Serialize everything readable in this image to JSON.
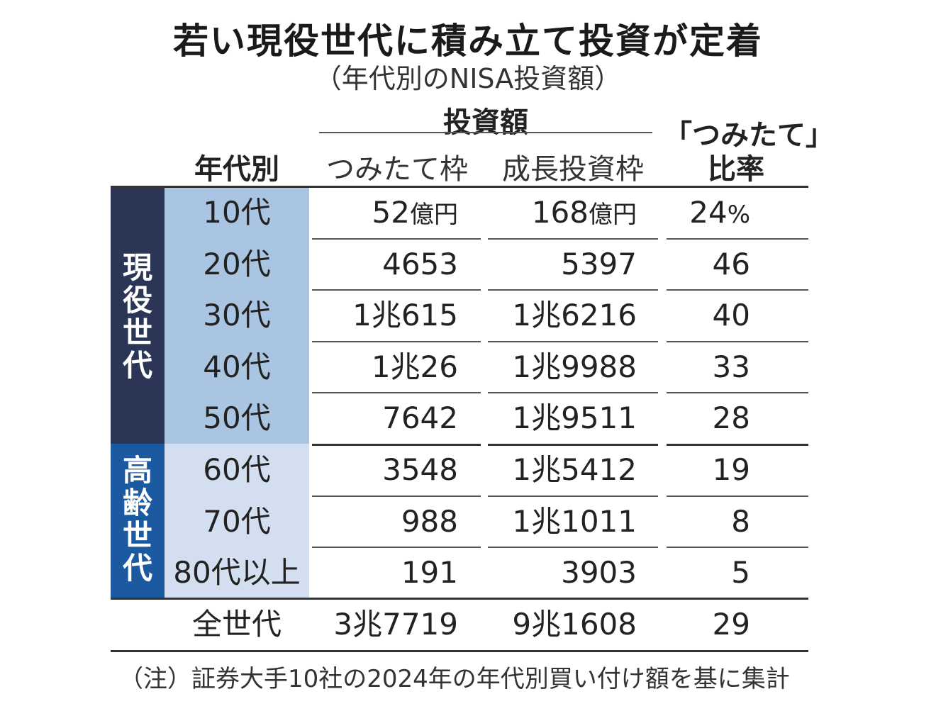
{
  "title": "若い現役世代に積み立て投資が定着",
  "subtitle": "（年代別のNISA投資額）",
  "headers": {
    "investment_group": "投資額",
    "age": "年代別",
    "tsumitate": "つみたて枠",
    "growth": "成長投資枠",
    "ratio_line1": "「つみたて」",
    "ratio_line2": "比率"
  },
  "groups": {
    "working": [
      "現",
      "役",
      "世",
      "代"
    ],
    "elderly": [
      "高",
      "齢",
      "世",
      "代"
    ]
  },
  "colors": {
    "working_band": "#2b3556",
    "working_age_bg": "#a9c5e1",
    "elderly_band": "#1b5aa0",
    "elderly_age_bg": "#d3dff0"
  },
  "rows": [
    {
      "age": "10代",
      "tsumitate": "52",
      "tsumitate_unit": "億円",
      "growth": "168",
      "growth_unit": "億円",
      "ratio": "24",
      "ratio_unit": "%",
      "group": "working"
    },
    {
      "age": "20代",
      "tsumitate": "4653",
      "growth": "5397",
      "ratio": "46",
      "group": "working"
    },
    {
      "age": "30代",
      "tsumitate": "1兆615",
      "growth": "1兆6216",
      "ratio": "40",
      "group": "working"
    },
    {
      "age": "40代",
      "tsumitate": "1兆26",
      "growth": "1兆9988",
      "ratio": "33",
      "group": "working"
    },
    {
      "age": "50代",
      "tsumitate": "7642",
      "growth": "1兆9511",
      "ratio": "28",
      "group": "working"
    },
    {
      "age": "60代",
      "tsumitate": "3548",
      "growth": "1兆5412",
      "ratio": "19",
      "group": "elderly"
    },
    {
      "age": "70代",
      "tsumitate": "988",
      "growth": "1兆1011",
      "ratio": "8",
      "group": "elderly"
    },
    {
      "age": "80代以上",
      "tsumitate": "191",
      "growth": "3903",
      "ratio": "5",
      "group": "elderly"
    }
  ],
  "total": {
    "age": "全世代",
    "tsumitate": "3兆7719",
    "growth": "9兆1608",
    "ratio": "29"
  },
  "note": "（注）証券大手10社の2024年の年代別買い付け額を基に集計",
  "chart_data": {
    "type": "table",
    "title": "若い現役世代に積み立て投資が定着",
    "subtitle": "（年代別のNISA投資額）",
    "columns": [
      "年代別",
      "つみたて枠",
      "成長投資枠",
      "「つみたて」比率"
    ],
    "units": {
      "amount": "億円",
      "ratio": "%"
    },
    "row_groups": [
      {
        "name": "現役世代",
        "rows": [
          "10代",
          "20代",
          "30代",
          "40代",
          "50代"
        ]
      },
      {
        "name": "高齢世代",
        "rows": [
          "60代",
          "70代",
          "80代以上"
        ]
      }
    ],
    "categories": [
      "10代",
      "20代",
      "30代",
      "40代",
      "50代",
      "60代",
      "70代",
      "80代以上",
      "全世代"
    ],
    "series": [
      {
        "name": "つみたて枠",
        "values": [
          52,
          4653,
          10615,
          10026,
          7642,
          3548,
          988,
          191,
          37719
        ]
      },
      {
        "name": "成長投資枠",
        "values": [
          168,
          5397,
          16216,
          19988,
          19511,
          15412,
          11011,
          3903,
          91608
        ]
      },
      {
        "name": "「つみたて」比率",
        "values": [
          24,
          46,
          40,
          33,
          28,
          19,
          8,
          5,
          29
        ]
      }
    ],
    "note": "（注）証券大手10社の2024年の年代別買い付け額を基に集計"
  }
}
